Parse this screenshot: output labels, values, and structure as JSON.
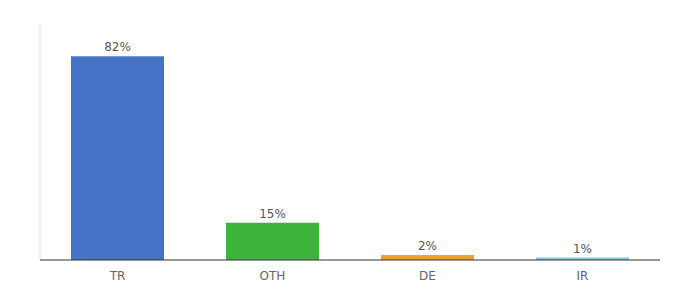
{
  "chart_data": {
    "type": "bar",
    "categories": [
      "TR",
      "OTH",
      "DE",
      "IR"
    ],
    "values": [
      82,
      15,
      2,
      1
    ],
    "value_labels": [
      "82%",
      "15%",
      "2%",
      "1%"
    ],
    "colors": [
      "#4472c4",
      "#3db53d",
      "#f0a030",
      "#7ec8e3"
    ],
    "ylim": [
      0,
      95
    ],
    "data_labels": true,
    "tick_labels": "x",
    "grid": false
  }
}
